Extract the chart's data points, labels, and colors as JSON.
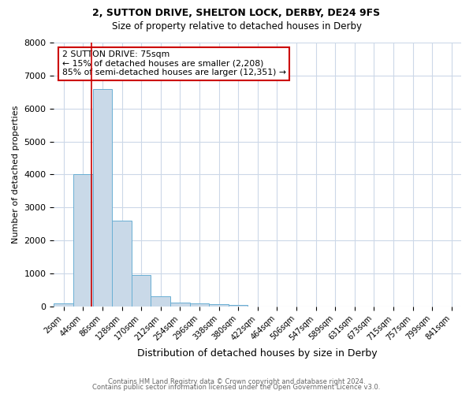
{
  "title1": "2, SUTTON DRIVE, SHELTON LOCK, DERBY, DE24 9FS",
  "title2": "Size of property relative to detached houses in Derby",
  "xlabel": "Distribution of detached houses by size in Derby",
  "ylabel": "Number of detached properties",
  "bar_labels": [
    "2sqm",
    "44sqm",
    "86sqm",
    "128sqm",
    "170sqm",
    "212sqm",
    "254sqm",
    "296sqm",
    "338sqm",
    "380sqm",
    "422sqm",
    "464sqm",
    "506sqm",
    "547sqm",
    "589sqm",
    "631sqm",
    "673sqm",
    "715sqm",
    "757sqm",
    "799sqm",
    "841sqm"
  ],
  "bar_heights": [
    100,
    4000,
    6600,
    2600,
    960,
    310,
    120,
    90,
    60,
    50,
    0,
    0,
    0,
    0,
    0,
    0,
    0,
    0,
    0,
    0,
    0
  ],
  "bar_color": "#c9d9e8",
  "bar_edge_color": "#6aafd4",
  "red_line_x": 1.42,
  "annotation_text": "2 SUTTON DRIVE: 75sqm\n← 15% of detached houses are smaller (2,208)\n85% of semi-detached houses are larger (12,351) →",
  "annotation_box_color": "#ffffff",
  "annotation_box_edge": "#cc0000",
  "ylim": [
    0,
    8000
  ],
  "yticks": [
    0,
    1000,
    2000,
    3000,
    4000,
    5000,
    6000,
    7000,
    8000
  ],
  "footer1": "Contains HM Land Registry data © Crown copyright and database right 2024.",
  "footer2": "Contains public sector information licensed under the Open Government Licence v3.0.",
  "bg_color": "#ffffff",
  "grid_color": "#ccd8e8"
}
